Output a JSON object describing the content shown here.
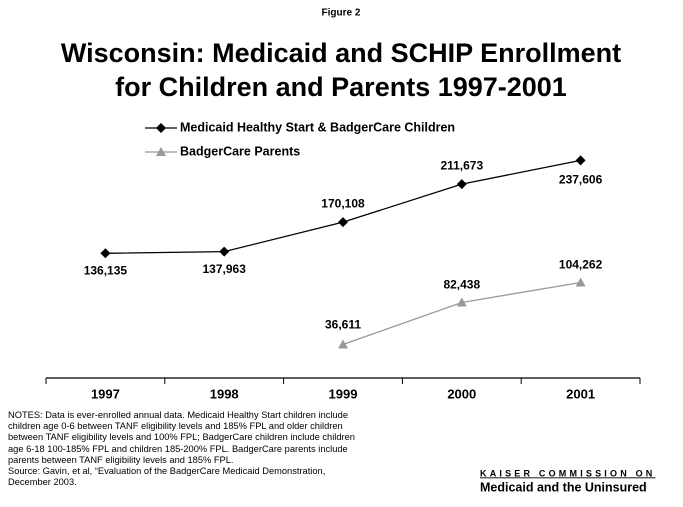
{
  "chart_data": {
    "type": "line",
    "figure_label": "Figure 2",
    "title": [
      "Wisconsin: Medicaid and SCHIP Enrollment",
      "for Children and Parents 1997-2001"
    ],
    "categories": [
      "1997",
      "1998",
      "1999",
      "2000",
      "2001"
    ],
    "ylim": [
      0,
      250000
    ],
    "series": [
      {
        "name": "Medicaid Healthy Start & BadgerCare Children",
        "color": "#000000",
        "marker": "diamond",
        "values": [
          136135,
          137963,
          170108,
          211673,
          237606
        ],
        "value_labels": [
          "136,135",
          "137,963",
          "170,108",
          "211,673",
          "237,606"
        ]
      },
      {
        "name": "BadgerCare Parents",
        "color": "#999999",
        "marker": "triangle",
        "values": [
          null,
          null,
          36611,
          82438,
          104262
        ],
        "value_labels": [
          null,
          null,
          "36,611",
          "82,438",
          "104,262"
        ]
      }
    ],
    "notes": [
      "NOTES: Data is ever-enrolled annual data.  Medicaid Healthy Start children include",
      "children age 0-6 between TANF eligibility levels and 185% FPL and older children",
      "between TANF eligibility levels and 100% FPL; BadgerCare children include children",
      "age 6-18 100-185% FPL and children 185-200% FPL.  BadgerCare parents include",
      "parents between TANF eligibility levels and 185% FPL.",
      "Source: Gavin, et al, “Evaluation of the BadgerCare Medicaid Demonstration,",
      "December 2003."
    ],
    "logo": [
      "KAISER COMMISSION ON",
      "Medicaid and the Uninsured"
    ]
  }
}
